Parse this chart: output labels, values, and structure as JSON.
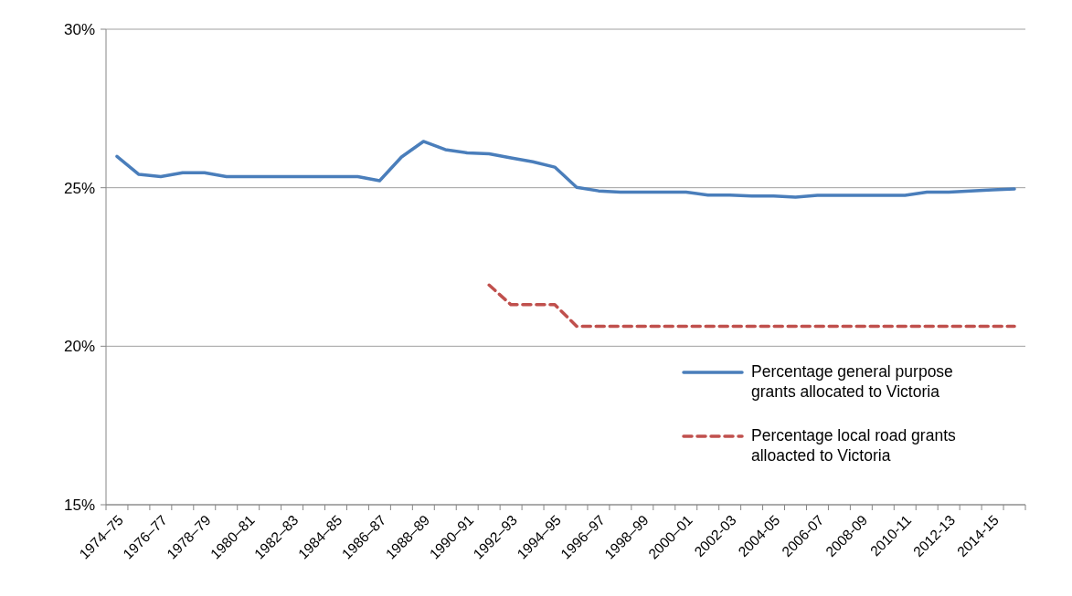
{
  "chart_data": {
    "type": "line",
    "categories": [
      "1974–75",
      null,
      "1976–77",
      null,
      "1978–79",
      null,
      "1980–81",
      null,
      "1982–83",
      null,
      "1984–85",
      null,
      "1986–87",
      null,
      "1988–89",
      null,
      "1990–91",
      null,
      "1992–93",
      null,
      "1994–95",
      null,
      "1996–97",
      null,
      "1998–99",
      null,
      "2000–01",
      null,
      "2002-03",
      null,
      "2004-05",
      null,
      "2006-07",
      null,
      "2008-09",
      null,
      "2010-11",
      null,
      "2012-13",
      null,
      "2014-15",
      null
    ],
    "series": [
      {
        "name": "Percentage general purpose grants allocated to Victoria",
        "color": "#4a7ebb",
        "line_style": "solid",
        "values": [
          25.99,
          25.42,
          25.35,
          25.47,
          25.47,
          25.35,
          25.35,
          25.35,
          25.35,
          25.35,
          25.35,
          25.35,
          25.22,
          25.97,
          26.46,
          26.2,
          26.1,
          26.07,
          25.94,
          25.82,
          25.65,
          25.01,
          24.9,
          24.86,
          24.86,
          24.86,
          24.86,
          24.77,
          24.77,
          24.74,
          24.74,
          24.7,
          24.76,
          24.76,
          24.76,
          24.76,
          24.76,
          24.86,
          24.86,
          24.9,
          24.93,
          24.96
        ]
      },
      {
        "name": "Percentage local road grants alloacted to Victoria",
        "color": "#c0504d",
        "line_style": "dashed",
        "values": [
          null,
          null,
          null,
          null,
          null,
          null,
          null,
          null,
          null,
          null,
          null,
          null,
          null,
          null,
          null,
          null,
          null,
          21.93,
          21.31,
          21.31,
          21.31,
          20.63,
          20.63,
          20.63,
          20.63,
          20.63,
          20.63,
          20.63,
          20.63,
          20.63,
          20.63,
          20.63,
          20.63,
          20.63,
          20.63,
          20.63,
          20.63,
          20.63,
          20.63,
          20.63,
          20.63,
          20.63
        ]
      }
    ],
    "ylim": [
      15,
      30
    ],
    "yticks": [
      {
        "value": 15,
        "label": "15%"
      },
      {
        "value": 20,
        "label": "20%"
      },
      {
        "value": 25,
        "label": "25%"
      },
      {
        "value": 30,
        "label": "30%"
      }
    ],
    "grid": "y",
    "legend": "bottom right",
    "marker": "none"
  }
}
